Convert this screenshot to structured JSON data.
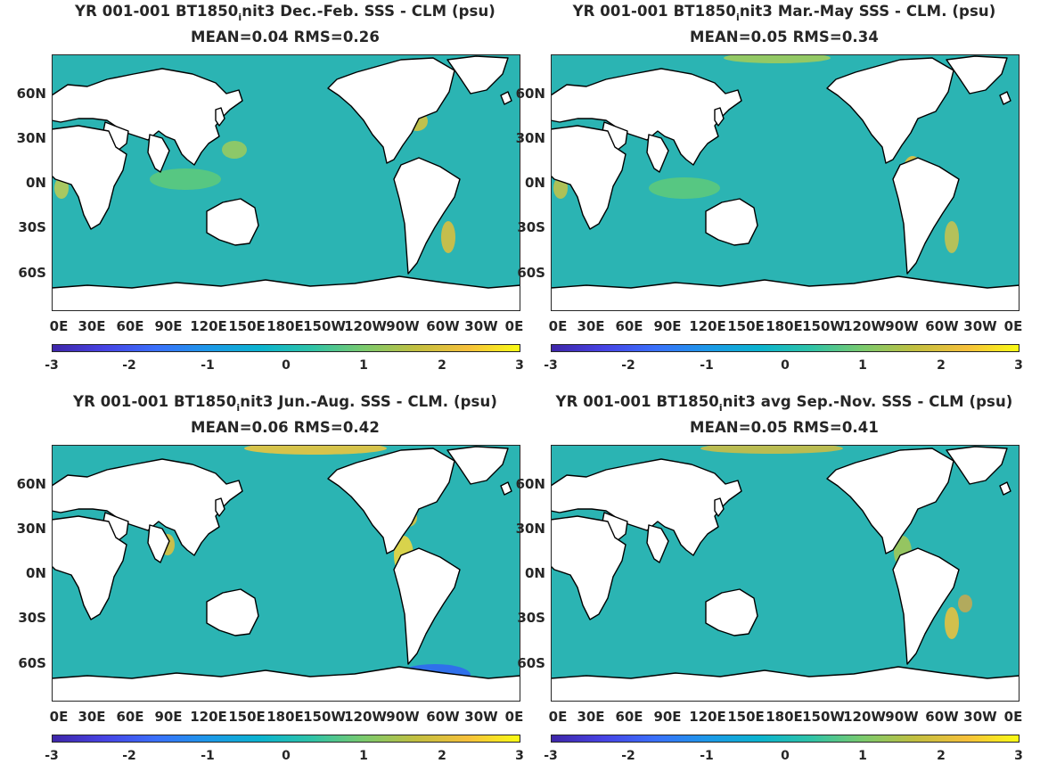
{
  "colormap": [
    "#3e26a8",
    "#4743e4",
    "#3a70fb",
    "#1d98e8",
    "#0bb3cf",
    "#2fc3a7",
    "#7bca6d",
    "#c2bf40",
    "#f6c03b",
    "#f9fb15"
  ],
  "colors": {
    "ocean": "#2bb4b3",
    "land": "#ffffff",
    "coast": "#000000"
  },
  "axes": {
    "lat_ticks": [
      "60N",
      "30N",
      "0N",
      "30S",
      "60S"
    ],
    "lon_ticks": [
      "0E",
      "30E",
      "60E",
      "90E",
      "120E",
      "150E",
      "180E",
      "150W",
      "120W",
      "90W",
      "60W",
      "30W",
      "0E"
    ],
    "colorbar_ticks": [
      "-3",
      "-2",
      "-1",
      "0",
      "1",
      "2",
      "3"
    ]
  },
  "panels": [
    {
      "id": "djf",
      "title_pre": "YR 001-001 BT1850",
      "title_sub": "i",
      "title_post": "nit3  Dec.-Feb. SSS - CLM (psu)",
      "stats": "MEAN=0.04   RMS=0.26",
      "anomalies": []
    },
    {
      "id": "mam",
      "title_pre": "YR 001-001 BT1850",
      "title_sub": "i",
      "title_post": "nit3 Mar.-May SSS - CLM. (psu)",
      "stats": "MEAN=0.05   RMS=0.34",
      "anomalies": []
    },
    {
      "id": "jja",
      "title_pre": "YR 001-001 BT1850",
      "title_sub": "i",
      "title_post": "nit3 Jun.-Aug. SSS - CLM. (psu)",
      "stats": "MEAN=0.06   RMS=0.42",
      "anomalies": []
    },
    {
      "id": "son",
      "title_pre": "YR 001-001 BT1850",
      "title_sub": "i",
      "title_post": "nit3 avg Sep.-Nov. SSS - CLM (psu)",
      "stats": "MEAN=0.05   RMS=0.41",
      "anomalies": []
    }
  ]
}
